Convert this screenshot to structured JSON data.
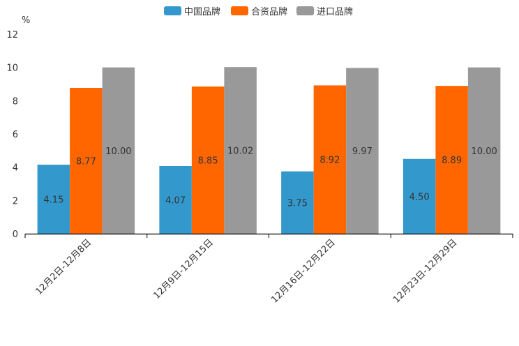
{
  "chart_data": {
    "type": "bar",
    "unit_label": "%",
    "categories": [
      "12月2日-12月8日",
      "12月9日-12月15日",
      "12月16日-12月22日",
      "12月23日-12月29日"
    ],
    "series": [
      {
        "name": "中国品牌",
        "color": "#3399CC",
        "values": [
          4.15,
          4.07,
          3.75,
          4.5
        ],
        "labels": [
          "4.15",
          "4.07",
          "3.75",
          "4.50"
        ]
      },
      {
        "name": "合资品牌",
        "color": "#FF6600",
        "values": [
          8.77,
          8.85,
          8.92,
          8.89
        ],
        "labels": [
          "8.77",
          "8.85",
          "8.92",
          "8.89"
        ]
      },
      {
        "name": "进口品牌",
        "color": "#999999",
        "values": [
          10.0,
          10.02,
          9.97,
          10.0
        ],
        "labels": [
          "10.00",
          "10.02",
          "9.97",
          "10.00"
        ]
      }
    ],
    "ylim": [
      0,
      12
    ],
    "yticks": [
      "0",
      "2",
      "4",
      "6",
      "8",
      "10",
      "12"
    ],
    "legend_position": "top-center",
    "grid": false
  }
}
